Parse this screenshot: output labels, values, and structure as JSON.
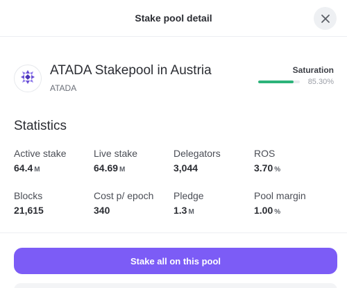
{
  "modal": {
    "title": "Stake pool detail",
    "close_icon": "close-icon"
  },
  "pool": {
    "name": "ATADA Stakepool in Austria",
    "ticker": "ATADA",
    "logo_icon": "pool-logo-icon",
    "saturation_label": "Saturation",
    "saturation_value": "85.30%",
    "saturation_fraction": 0.853
  },
  "statistics": {
    "heading": "Statistics",
    "items": [
      {
        "label": "Active stake",
        "value": "64.4",
        "unit": "M"
      },
      {
        "label": "Live stake",
        "value": "64.69",
        "unit": "M"
      },
      {
        "label": "Delegators",
        "value": "3,044",
        "unit": ""
      },
      {
        "label": "ROS",
        "value": "3.70",
        "unit": "%"
      },
      {
        "label": "Blocks",
        "value": "21,615",
        "unit": ""
      },
      {
        "label": "Cost p/ epoch",
        "value": "340",
        "unit": ""
      },
      {
        "label": "Pledge",
        "value": "1.3",
        "unit": "M"
      },
      {
        "label": "Pool margin",
        "value": "1.00",
        "unit": "%"
      }
    ]
  },
  "actions": {
    "stake_label": "Stake all on this pool"
  },
  "colors": {
    "accent": "#7c5cf6",
    "saturation": "#2cb37a",
    "logo_primary": "#6a4fd6"
  }
}
